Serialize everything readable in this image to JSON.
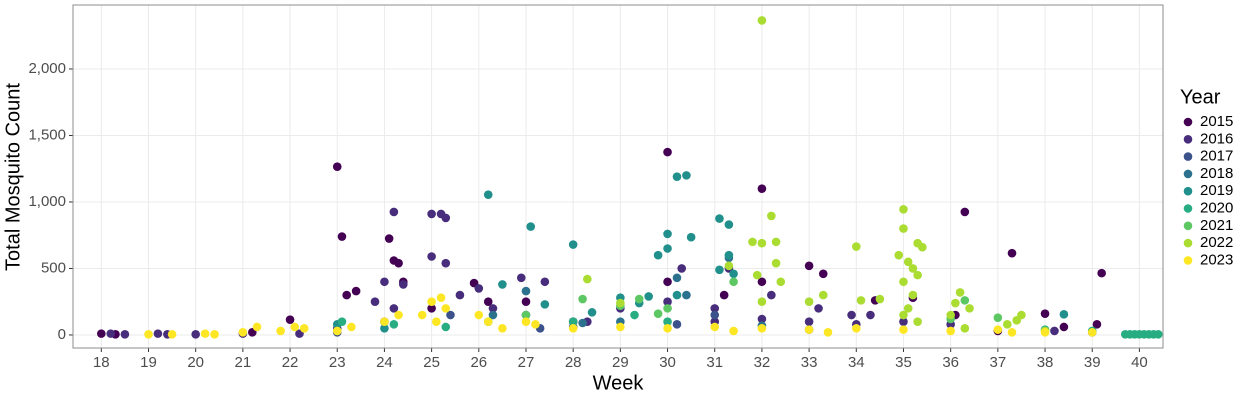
{
  "chart_data": {
    "type": "scatter",
    "xlabel": "Week",
    "ylabel": "Total Mosquito Count",
    "legend_title": "Year",
    "legend": "right",
    "grid": true,
    "xlim": [
      17.4,
      40.5
    ],
    "ylim": [
      -98,
      2481
    ],
    "xticks": [
      18,
      19,
      20,
      21,
      22,
      23,
      24,
      25,
      26,
      27,
      28,
      29,
      30,
      31,
      32,
      33,
      34,
      35,
      36,
      37,
      38,
      39,
      40
    ],
    "yticks": [
      0,
      500,
      {
        "value": 1000,
        "label": "1,000"
      },
      {
        "value": 1500,
        "label": "1,500"
      },
      {
        "value": 2000,
        "label": "2,000"
      }
    ],
    "series": [
      {
        "name": "2015",
        "color": "#440154",
        "x": [
          23.0,
          23.1,
          24.1,
          24.2,
          24.3,
          25.9,
          30.0,
          32.0,
          33.0,
          36.3,
          37.3,
          39.2,
          23.2,
          23.4,
          24.4,
          25.0,
          26.2,
          27.0,
          28.0,
          30.0,
          31.2,
          32.0,
          33.3,
          34.4,
          35.2,
          36.1,
          37.0,
          38.0,
          38.4,
          39.1,
          22.0,
          18.0,
          18.3,
          21.2
        ],
        "values": [
          1265,
          740,
          725,
          560,
          540,
          390,
          1375,
          1100,
          520,
          925,
          615,
          465,
          300,
          330,
          400,
          200,
          250,
          250,
          100,
          400,
          300,
          400,
          460,
          260,
          280,
          150,
          30,
          160,
          60,
          80,
          115,
          10,
          5,
          20
        ]
      },
      {
        "name": "2016",
        "color": "#472d7b",
        "x": [
          24.2,
          25.0,
          25.2,
          25.3,
          25.0,
          25.3,
          24.0,
          24.4,
          23.8,
          24.2,
          25.6,
          26.0,
          26.3,
          26.9,
          27.4,
          29.0,
          30.3,
          30.0,
          31.0,
          31.3,
          32.2,
          33.2,
          33.9,
          34.3,
          35.0,
          36.0,
          18.2,
          18.5,
          19.2,
          19.4,
          20.0,
          21.0,
          22.2,
          23.0,
          24.0,
          27.0,
          28.3,
          31.0,
          32.0,
          33.0,
          34.0,
          38.2,
          39.0
        ],
        "values": [
          925,
          910,
          910,
          880,
          590,
          540,
          400,
          380,
          250,
          200,
          300,
          350,
          200,
          430,
          400,
          200,
          500,
          250,
          200,
          500,
          300,
          200,
          150,
          150,
          100,
          80,
          10,
          5,
          10,
          5,
          5,
          10,
          10,
          50,
          100,
          150,
          100,
          100,
          120,
          100,
          80,
          30,
          20
        ]
      },
      {
        "name": "2017",
        "color": "#3b528b",
        "x": [
          25.4,
          28.0,
          30.2,
          31.0,
          33.0,
          23.0,
          27.3
        ],
        "values": [
          150,
          60,
          80,
          150,
          40,
          20,
          50
        ]
      },
      {
        "name": "2018",
        "color": "#2c728e",
        "x": [
          27.0,
          30.2,
          31.3,
          30.4,
          26.3,
          29.0,
          32.0,
          28.2
        ],
        "values": [
          330,
          430,
          580,
          300,
          150,
          100,
          70,
          90
        ]
      },
      {
        "name": "2019",
        "color": "#21908c",
        "x": [
          26.2,
          27.1,
          28.0,
          29.4,
          29.6,
          29.8,
          30.0,
          30.2,
          30.4,
          30.5,
          30.0,
          31.1,
          31.3,
          31.3,
          31.1,
          31.4,
          23.0,
          24.0,
          26.5,
          27.4,
          28.4,
          29.0,
          30.2,
          38.4
        ],
        "values": [
          1055,
          815,
          680,
          240,
          290,
          600,
          760,
          1190,
          1200,
          735,
          650,
          875,
          830,
          600,
          490,
          460,
          80,
          50,
          380,
          230,
          170,
          280,
          300,
          155
        ]
      },
      {
        "name": "2020",
        "color": "#27ad81",
        "x": [
          23.1,
          24.2,
          25.3,
          26.2,
          28.0,
          29.3,
          30.0,
          38.0,
          39.0,
          39.8,
          39.9,
          40.0,
          40.1,
          40.2,
          40.3,
          40.4,
          39.7
        ],
        "values": [
          100,
          80,
          60,
          100,
          100,
          150,
          100,
          40,
          30,
          5,
          5,
          5,
          5,
          5,
          5,
          5,
          5
        ]
      },
      {
        "name": "2021",
        "color": "#5dc863",
        "x": [
          28.2,
          29.0,
          29.4,
          29.8,
          30.0,
          31.4,
          36.0,
          36.3,
          37.0,
          27.0
        ],
        "values": [
          270,
          220,
          270,
          160,
          200,
          400,
          120,
          260,
          130,
          150
        ]
      },
      {
        "name": "2022",
        "color": "#aadc32",
        "x": [
          32.0,
          32.2,
          31.8,
          32.0,
          32.3,
          32.3,
          32.4,
          31.9,
          32.0,
          31.3,
          28.3,
          29.0,
          33.0,
          33.3,
          34.0,
          34.1,
          34.5,
          35.0,
          35.0,
          35.3,
          35.4,
          34.9,
          35.1,
          35.2,
          35.3,
          35.0,
          35.2,
          35.1,
          35.0,
          35.3,
          36.1,
          36.2,
          36.0,
          36.4,
          37.2,
          37.4,
          37.5,
          38.0,
          36.3
        ],
        "values": [
          2365,
          895,
          700,
          690,
          700,
          540,
          400,
          450,
          250,
          520,
          420,
          240,
          250,
          300,
          665,
          260,
          270,
          945,
          800,
          690,
          660,
          600,
          550,
          500,
          450,
          400,
          300,
          200,
          150,
          100,
          240,
          320,
          150,
          200,
          80,
          110,
          150,
          30,
          50
        ]
      },
      {
        "name": "2023",
        "color": "#fde725",
        "x": [
          21.3,
          21.0,
          22.1,
          22.3,
          21.8,
          20.2,
          19.0,
          19.5,
          20.4,
          23.0,
          23.3,
          24.0,
          24.3,
          25.0,
          25.2,
          25.3,
          24.8,
          25.1,
          26.0,
          26.2,
          27.0,
          27.2,
          28.0,
          29.0,
          30.0,
          31.0,
          32.0,
          33.0,
          34.0,
          35.0,
          36.0,
          37.0,
          37.3,
          38.0,
          39.0,
          26.5,
          31.4,
          33.4
        ],
        "values": [
          60,
          20,
          60,
          50,
          30,
          10,
          5,
          5,
          5,
          30,
          60,
          100,
          150,
          250,
          280,
          200,
          150,
          100,
          150,
          100,
          100,
          80,
          50,
          60,
          50,
          60,
          50,
          40,
          50,
          40,
          30,
          40,
          20,
          20,
          20,
          50,
          30,
          20
        ]
      }
    ]
  }
}
